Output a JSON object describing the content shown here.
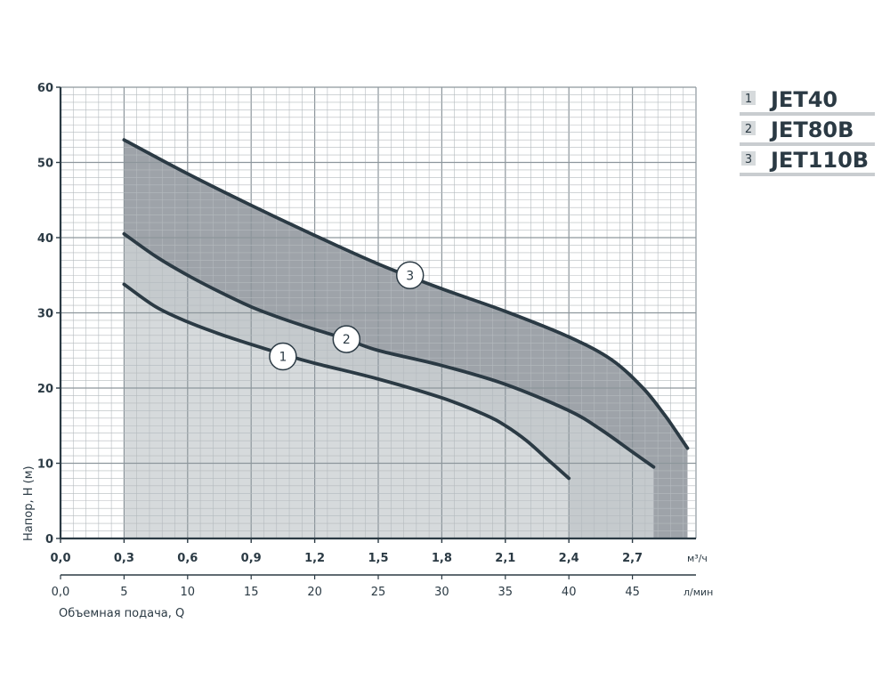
{
  "chart_data": {
    "type": "area",
    "ylabel": "Напор, H (м)",
    "xlabel": "Объемная подача, Q",
    "x_unit_top": "м³/ч",
    "x_unit_bottom": "л/мин",
    "xlim": [
      0,
      3.0
    ],
    "ylim": [
      0,
      60
    ],
    "x_ticks": [
      "0,0",
      "0,3",
      "0,6",
      "0,9",
      "1,2",
      "1,5",
      "1,8",
      "2,1",
      "2,4",
      "2,7"
    ],
    "x_tick_values": [
      0,
      0.3,
      0.6,
      0.9,
      1.2,
      1.5,
      1.8,
      2.1,
      2.4,
      2.7
    ],
    "x2_ticks": [
      "0,0",
      "5",
      "10",
      "15",
      "20",
      "25",
      "30",
      "35",
      "40",
      "45"
    ],
    "y_ticks": [
      "0",
      "10",
      "20",
      "30",
      "40",
      "50",
      "60"
    ],
    "y_tick_values": [
      0,
      10,
      20,
      30,
      40,
      50,
      60
    ],
    "grid": true,
    "legend_position": "top-right",
    "series": [
      {
        "name": "JET110B",
        "label": "3",
        "color": "#9ea3a9",
        "x": [
          0.3,
          0.6,
          0.9,
          1.2,
          1.5,
          1.8,
          2.1,
          2.4,
          2.6,
          2.75,
          2.85,
          2.9,
          2.96
        ],
        "y": [
          53,
          48.5,
          44.3,
          40.3,
          36.5,
          33.2,
          30.2,
          26.8,
          23.8,
          20,
          16.5,
          14.5,
          12
        ]
      },
      {
        "name": "JET80B",
        "label": "2",
        "color": "#c5cacd",
        "x": [
          0.3,
          0.45,
          0.6,
          0.75,
          0.9,
          1.05,
          1.2,
          1.35,
          1.5,
          1.8,
          2.1,
          2.4,
          2.55,
          2.7,
          2.8
        ],
        "y": [
          40.5,
          37.5,
          35,
          32.8,
          30.8,
          29.2,
          27.8,
          26.5,
          25,
          23,
          20.5,
          17,
          14.5,
          11.5,
          9.5
        ]
      },
      {
        "name": "JET40",
        "label": "1",
        "color": "#d6dadc",
        "x": [
          0.3,
          0.45,
          0.6,
          0.75,
          0.9,
          1.05,
          1.2,
          1.5,
          1.8,
          2.0,
          2.1,
          2.2,
          2.3,
          2.4
        ],
        "y": [
          33.8,
          30.8,
          28.8,
          27.2,
          25.8,
          24.5,
          23.3,
          21.2,
          18.7,
          16.5,
          15,
          13,
          10.5,
          8
        ]
      }
    ],
    "markers": [
      {
        "label": "3",
        "x": 1.65,
        "y": 35
      },
      {
        "label": "2",
        "x": 1.35,
        "y": 26.5
      },
      {
        "label": "1",
        "x": 1.05,
        "y": 24.2
      }
    ]
  },
  "legend": [
    {
      "num": "1",
      "name": "JET40"
    },
    {
      "num": "2",
      "name": "JET80B"
    },
    {
      "num": "3",
      "name": "JET110B"
    }
  ]
}
